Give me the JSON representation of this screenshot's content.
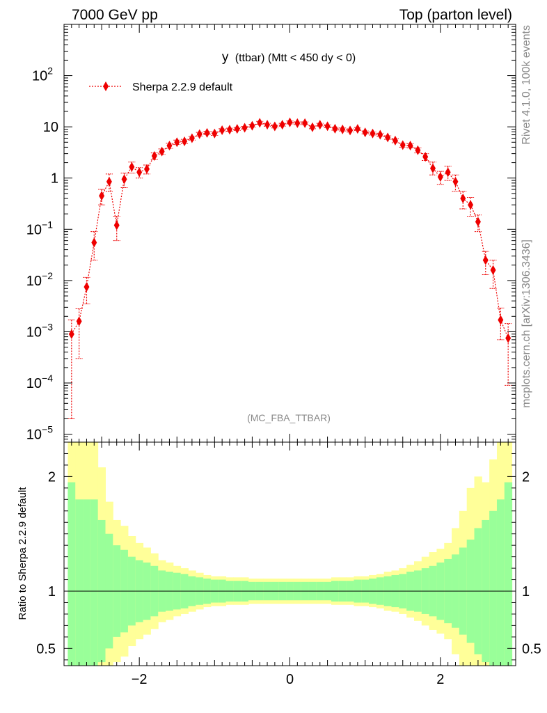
{
  "header": {
    "left": "7000 GeV pp",
    "right": "Top (parton level)"
  },
  "side_labels": {
    "rivet": "Rivet 4.1.0,  100k events",
    "mcplots": "mcplots.cern.ch [arXiv:1306.3436]"
  },
  "colors": {
    "series": "#ee0000",
    "band_inner": "#99ff99",
    "band_outer": "#ffff99",
    "grey_text": "#888888"
  },
  "chart_data": [
    {
      "type": "line",
      "title": "y (ttbar) (Mtt < 450 dy < 0)",
      "title_main": "y",
      "title_rest": "(ttbar) (Mtt < 450 dy < 0)",
      "watermark": "(MC_FBA_TTBAR)",
      "yscale": "log",
      "xlim": [
        -3.0,
        3.0
      ],
      "ylim": [
        7e-06,
        1000
      ],
      "legend": {
        "entry": "Sherpa 2.2.9 default",
        "position": "top-left"
      },
      "ytick_labels": [
        {
          "value": 1e-05,
          "base": "10",
          "exp": "−5"
        },
        {
          "value": 0.0001,
          "base": "10",
          "exp": "−4"
        },
        {
          "value": 0.001,
          "base": "10",
          "exp": "−3"
        },
        {
          "value": 0.01,
          "base": "10",
          "exp": "−2"
        },
        {
          "value": 0.1,
          "base": "10",
          "exp": "−1"
        },
        {
          "value": 1,
          "base": "1",
          "exp": ""
        },
        {
          "value": 10,
          "base": "10",
          "exp": ""
        },
        {
          "value": 100,
          "base": "10",
          "exp": "2"
        }
      ],
      "series": [
        {
          "name": "Sherpa 2.2.9 default",
          "x": [
            -2.9,
            -2.8,
            -2.7,
            -2.6,
            -2.5,
            -2.4,
            -2.3,
            -2.2,
            -2.1,
            -2.0,
            -1.9,
            -1.8,
            -1.7,
            -1.6,
            -1.5,
            -1.4,
            -1.3,
            -1.2,
            -1.1,
            -1.0,
            -0.9,
            -0.8,
            -0.7,
            -0.6,
            -0.5,
            -0.4,
            -0.3,
            -0.2,
            -0.1,
            0.0,
            0.1,
            0.2,
            0.3,
            0.4,
            0.5,
            0.6,
            0.7,
            0.8,
            0.9,
            1.0,
            1.1,
            1.2,
            1.3,
            1.4,
            1.5,
            1.6,
            1.7,
            1.8,
            1.9,
            2.0,
            2.1,
            2.2,
            2.3,
            2.4,
            2.5,
            2.6,
            2.7,
            2.8,
            2.9
          ],
          "y": [
            0.0009,
            0.0016,
            0.0075,
            0.055,
            0.45,
            0.85,
            0.12,
            0.95,
            1.65,
            1.3,
            1.5,
            2.7,
            3.3,
            4.3,
            5.0,
            5.2,
            6.0,
            7.2,
            7.6,
            7.4,
            8.6,
            8.8,
            9.1,
            9.6,
            10.5,
            12.0,
            11.0,
            10.2,
            11.0,
            12.2,
            11.8,
            11.8,
            9.8,
            11.0,
            10.3,
            9.2,
            8.9,
            8.5,
            9.1,
            7.8,
            7.4,
            7.0,
            6.2,
            5.4,
            4.4,
            4.3,
            3.5,
            2.6,
            1.55,
            1.05,
            1.3,
            0.85,
            0.4,
            0.3,
            0.14,
            0.025,
            0.016,
            0.0017,
            0.00075
          ],
          "yerr_low": [
            0.00088,
            0.0013,
            0.004,
            0.03,
            0.15,
            0.3,
            0.06,
            0.3,
            0.4,
            0.3,
            0.3,
            0.4,
            0.4,
            0.5,
            0.5,
            0.5,
            0.5,
            0.6,
            0.6,
            0.6,
            0.6,
            0.6,
            0.6,
            0.6,
            0.7,
            0.8,
            0.7,
            0.7,
            0.7,
            0.8,
            0.7,
            0.7,
            0.6,
            0.7,
            0.7,
            0.6,
            0.6,
            0.6,
            0.6,
            0.5,
            0.5,
            0.5,
            0.5,
            0.5,
            0.4,
            0.4,
            0.4,
            0.4,
            0.4,
            0.3,
            0.4,
            0.3,
            0.15,
            0.12,
            0.05,
            0.012,
            0.009,
            0.001,
            0.00066
          ],
          "yerr_high": [
            0.0008,
            0.0012,
            0.004,
            0.035,
            0.15,
            0.35,
            0.06,
            0.3,
            0.4,
            0.3,
            0.3,
            0.4,
            0.4,
            0.5,
            0.5,
            0.5,
            0.5,
            0.6,
            0.6,
            0.6,
            0.6,
            0.6,
            0.6,
            0.6,
            0.7,
            0.8,
            0.7,
            0.7,
            0.7,
            0.8,
            0.7,
            0.7,
            0.6,
            0.7,
            0.7,
            0.6,
            0.6,
            0.6,
            0.6,
            0.5,
            0.5,
            0.5,
            0.5,
            0.5,
            0.4,
            0.4,
            0.4,
            0.4,
            0.5,
            0.3,
            0.4,
            0.3,
            0.15,
            0.12,
            0.05,
            0.012,
            0.009,
            0.0012,
            0.0007
          ]
        }
      ]
    },
    {
      "type": "area",
      "ylabel": "Ratio to Sherpa 2.2.9 default",
      "xlim": [
        -3.0,
        3.0
      ],
      "ylim": [
        0.35,
        2.3
      ],
      "reference_line": 1.0,
      "xtick_labels": [
        {
          "value": -2,
          "label": "−2"
        },
        {
          "value": 0,
          "label": "0"
        },
        {
          "value": 2,
          "label": "2"
        }
      ],
      "ytick_labels": [
        {
          "value": 0.5,
          "label": "0.5"
        },
        {
          "value": 1,
          "label": "1"
        },
        {
          "value": 2,
          "label": "2"
        }
      ],
      "bin_edges": [
        -2.9,
        -2.8,
        -2.7,
        -2.6,
        -2.5,
        -2.4,
        -2.3,
        -2.2,
        -2.1,
        -2.0,
        -1.9,
        -1.8,
        -1.7,
        -1.6,
        -1.5,
        -1.4,
        -1.3,
        -1.2,
        -1.1,
        -1.0,
        -0.9,
        -0.8,
        -0.7,
        -0.6,
        -0.5,
        -0.4,
        -0.3,
        -0.2,
        -0.1,
        0.0,
        0.1,
        0.2,
        0.3,
        0.4,
        0.5,
        0.6,
        0.7,
        0.8,
        0.9,
        1.0,
        1.1,
        1.2,
        1.3,
        1.4,
        1.5,
        1.6,
        1.7,
        1.8,
        1.9,
        2.0,
        2.1,
        2.2,
        2.3,
        2.4,
        2.5,
        2.6,
        2.7,
        2.8,
        2.9
      ],
      "inner_band": [
        0.95,
        0.8,
        0.8,
        0.8,
        0.62,
        0.5,
        0.4,
        0.36,
        0.3,
        0.27,
        0.25,
        0.22,
        0.18,
        0.17,
        0.16,
        0.15,
        0.13,
        0.12,
        0.11,
        0.1,
        0.1,
        0.09,
        0.09,
        0.09,
        0.08,
        0.08,
        0.08,
        0.08,
        0.08,
        0.08,
        0.08,
        0.08,
        0.08,
        0.08,
        0.08,
        0.09,
        0.09,
        0.09,
        0.1,
        0.1,
        0.11,
        0.12,
        0.13,
        0.14,
        0.15,
        0.17,
        0.18,
        0.2,
        0.22,
        0.25,
        0.28,
        0.32,
        0.38,
        0.45,
        0.55,
        0.62,
        0.7,
        0.8,
        0.95
      ],
      "outer_band": [
        1.5,
        1.3,
        1.3,
        1.3,
        1.08,
        0.78,
        0.62,
        0.57,
        0.48,
        0.42,
        0.38,
        0.33,
        0.27,
        0.25,
        0.22,
        0.2,
        0.18,
        0.16,
        0.14,
        0.13,
        0.13,
        0.12,
        0.12,
        0.12,
        0.11,
        0.11,
        0.11,
        0.11,
        0.11,
        0.11,
        0.11,
        0.11,
        0.11,
        0.11,
        0.11,
        0.12,
        0.12,
        0.12,
        0.13,
        0.13,
        0.14,
        0.15,
        0.17,
        0.18,
        0.2,
        0.23,
        0.26,
        0.3,
        0.34,
        0.37,
        0.42,
        0.55,
        0.7,
        0.9,
        1.0,
        0.95,
        1.15,
        1.5,
        1.5
      ]
    }
  ]
}
